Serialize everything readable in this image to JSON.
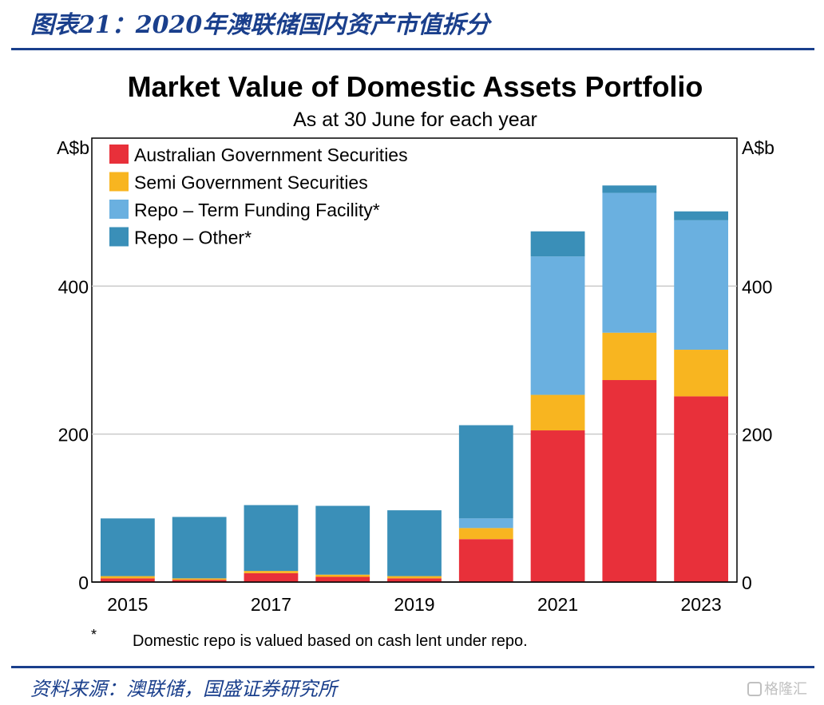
{
  "header": {
    "figure_title": "图表21：2020年澳联储国内资产市值拆分"
  },
  "footer": {
    "source": "资料来源：澳联储，国盛证券研究所",
    "watermark": "格隆汇"
  },
  "colors": {
    "ags": "#e8303a",
    "semi": "#f8b520",
    "repo_tff": "#6ab0e0",
    "repo_other": "#3a8fb8",
    "grid": "#c8c8c8",
    "brand": "#1a3f8c"
  },
  "chart_data": {
    "type": "bar",
    "stacked": true,
    "title": "Market Value of Domestic Assets Portfolio",
    "subtitle": "As at 30 June for each year",
    "ylabel_left": "A$b",
    "ylabel_right": "A$b",
    "ylim": [
      0,
      600
    ],
    "yticks": [
      0,
      200,
      400
    ],
    "x_tick_labels": [
      "2015",
      "2017",
      "2019",
      "2021",
      "2023"
    ],
    "categories": [
      "2015",
      "2016",
      "2017",
      "2018",
      "2019",
      "2020",
      "2021",
      "2022",
      "2023"
    ],
    "series": [
      {
        "name": "Australian Government Securities",
        "color_key": "ags",
        "values": [
          5,
          3,
          12,
          7,
          5,
          58,
          205,
          273,
          251
        ]
      },
      {
        "name": "Semi Government Securities",
        "color_key": "semi",
        "values": [
          3,
          2,
          3,
          3,
          3,
          15,
          48,
          64,
          63
        ]
      },
      {
        "name": "Repo – Term Funding Facility*",
        "color_key": "repo_tff",
        "values": [
          0,
          0,
          0,
          0,
          0,
          13,
          187,
          189,
          175
        ]
      },
      {
        "name": "Repo – Other*",
        "color_key": "repo_other",
        "values": [
          78,
          83,
          89,
          93,
          89,
          126,
          34,
          10,
          12
        ]
      }
    ],
    "legend_position": "top-left",
    "footnote_marker": "*",
    "footnote": "Domestic repo is valued based on cash lent under repo.",
    "grid": true
  }
}
